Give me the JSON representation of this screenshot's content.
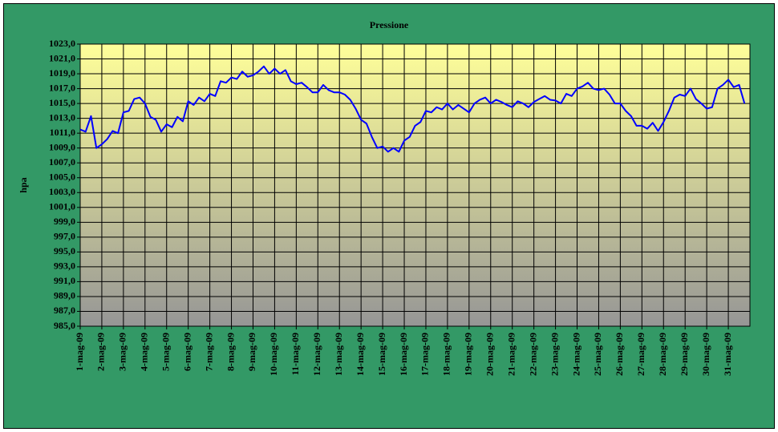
{
  "chart_data": {
    "type": "line",
    "title": "Pressione",
    "y_label": "hpa",
    "categories": [
      "1-mag-09",
      null,
      null,
      null,
      "2-mag-09",
      null,
      null,
      null,
      "3-mag-09",
      null,
      null,
      null,
      "4-mag-09",
      null,
      null,
      null,
      "5-mag-09",
      null,
      null,
      null,
      "6-mag-09",
      null,
      null,
      null,
      "7-mag-09",
      null,
      null,
      null,
      "8-mag-09",
      null,
      null,
      null,
      "9-mag-09",
      null,
      null,
      null,
      "10-mag-09",
      null,
      null,
      null,
      "11-mag-09",
      null,
      null,
      null,
      "12-mag-09",
      null,
      null,
      null,
      "13-mag-09",
      null,
      null,
      null,
      "14-mag-09",
      null,
      null,
      null,
      "15-mag-09",
      null,
      null,
      null,
      "16-mag-09",
      null,
      null,
      null,
      "17-mag-09",
      null,
      null,
      null,
      "18-mag-09",
      null,
      null,
      null,
      "19-mag-09",
      null,
      null,
      null,
      "20-mag-09",
      null,
      null,
      null,
      "21-mag-09",
      null,
      null,
      null,
      "22-mag-09",
      null,
      null,
      null,
      "23-mag-09",
      null,
      null,
      null,
      "24-mag-09",
      null,
      null,
      null,
      "25-mag-09",
      null,
      null,
      null,
      "26-mag-09",
      null,
      null,
      null,
      "27-mag-09",
      null,
      null,
      null,
      "28-mag-09",
      null,
      null,
      null,
      "29-mag-09",
      null,
      null,
      null,
      "30-mag-09",
      null,
      null,
      null,
      "31-mag-09",
      null,
      null,
      null
    ],
    "series": [
      {
        "name": "Pressione",
        "color": "#0000ff",
        "values": [
          1011.5,
          1011.2,
          1013.3,
          1009.0,
          1009.5,
          1010.2,
          1011.3,
          1011.0,
          1013.8,
          1014.0,
          1015.6,
          1015.8,
          1015.0,
          1013.2,
          1012.8,
          1011.2,
          1012.2,
          1011.8,
          1013.2,
          1012.6,
          1015.3,
          1014.8,
          1015.8,
          1015.3,
          1016.3,
          1016.0,
          1018.0,
          1017.8,
          1018.5,
          1018.3,
          1019.3,
          1018.6,
          1018.8,
          1019.3,
          1020.0,
          1019.0,
          1019.7,
          1019.0,
          1019.5,
          1018.0,
          1017.6,
          1017.8,
          1017.2,
          1016.5,
          1016.5,
          1017.5,
          1016.8,
          1016.5,
          1016.5,
          1016.2,
          1015.5,
          1014.3,
          1012.8,
          1012.3,
          1010.5,
          1009.0,
          1009.2,
          1008.5,
          1009.0,
          1008.5,
          1010.0,
          1010.5,
          1012.0,
          1012.5,
          1014.0,
          1013.8,
          1014.5,
          1014.2,
          1015.0,
          1014.2,
          1014.8,
          1014.3,
          1013.8,
          1015.0,
          1015.5,
          1015.8,
          1015.0,
          1015.5,
          1015.2,
          1014.8,
          1014.5,
          1015.3,
          1015.0,
          1014.5,
          1015.2,
          1015.6,
          1016.0,
          1015.5,
          1015.4,
          1015.0,
          1016.3,
          1016.0,
          1017.0,
          1017.3,
          1017.8,
          1017.0,
          1016.8,
          1017.0,
          1016.2,
          1015.0,
          1015.0,
          1014.0,
          1013.3,
          1012.0,
          1012.0,
          1011.6,
          1012.4,
          1011.3,
          1012.5,
          1014.0,
          1015.8,
          1016.2,
          1016.0,
          1017.0,
          1015.6,
          1015.0,
          1014.3,
          1014.5,
          1017.0,
          1017.5,
          1018.2,
          1017.2,
          1017.5,
          1015.0
        ]
      }
    ],
    "ylim": [
      985,
      1023
    ],
    "yticks": [
      {
        "value": 985,
        "label": "985,0"
      },
      {
        "value": 987,
        "label": "987,0"
      },
      {
        "value": 989,
        "label": "989,0"
      },
      {
        "value": 991,
        "label": "991,0"
      },
      {
        "value": 993,
        "label": "993,0"
      },
      {
        "value": 995,
        "label": "995,0"
      },
      {
        "value": 997,
        "label": "997,0"
      },
      {
        "value": 999,
        "label": "999,0"
      },
      {
        "value": 1001,
        "label": "1001,0"
      },
      {
        "value": 1003,
        "label": "1003,0"
      },
      {
        "value": 1005,
        "label": "1005,0"
      },
      {
        "value": 1007,
        "label": "1007,0"
      },
      {
        "value": 1009,
        "label": "1009,0"
      },
      {
        "value": 1011,
        "label": "1011,0"
      },
      {
        "value": 1013,
        "label": "1013,0"
      },
      {
        "value": 1015,
        "label": "1015,0"
      },
      {
        "value": 1017,
        "label": "1017,0"
      },
      {
        "value": 1019,
        "label": "1019,0"
      },
      {
        "value": 1021,
        "label": "1021,0"
      },
      {
        "value": 1023,
        "label": "1023,0"
      }
    ],
    "grid": true
  }
}
